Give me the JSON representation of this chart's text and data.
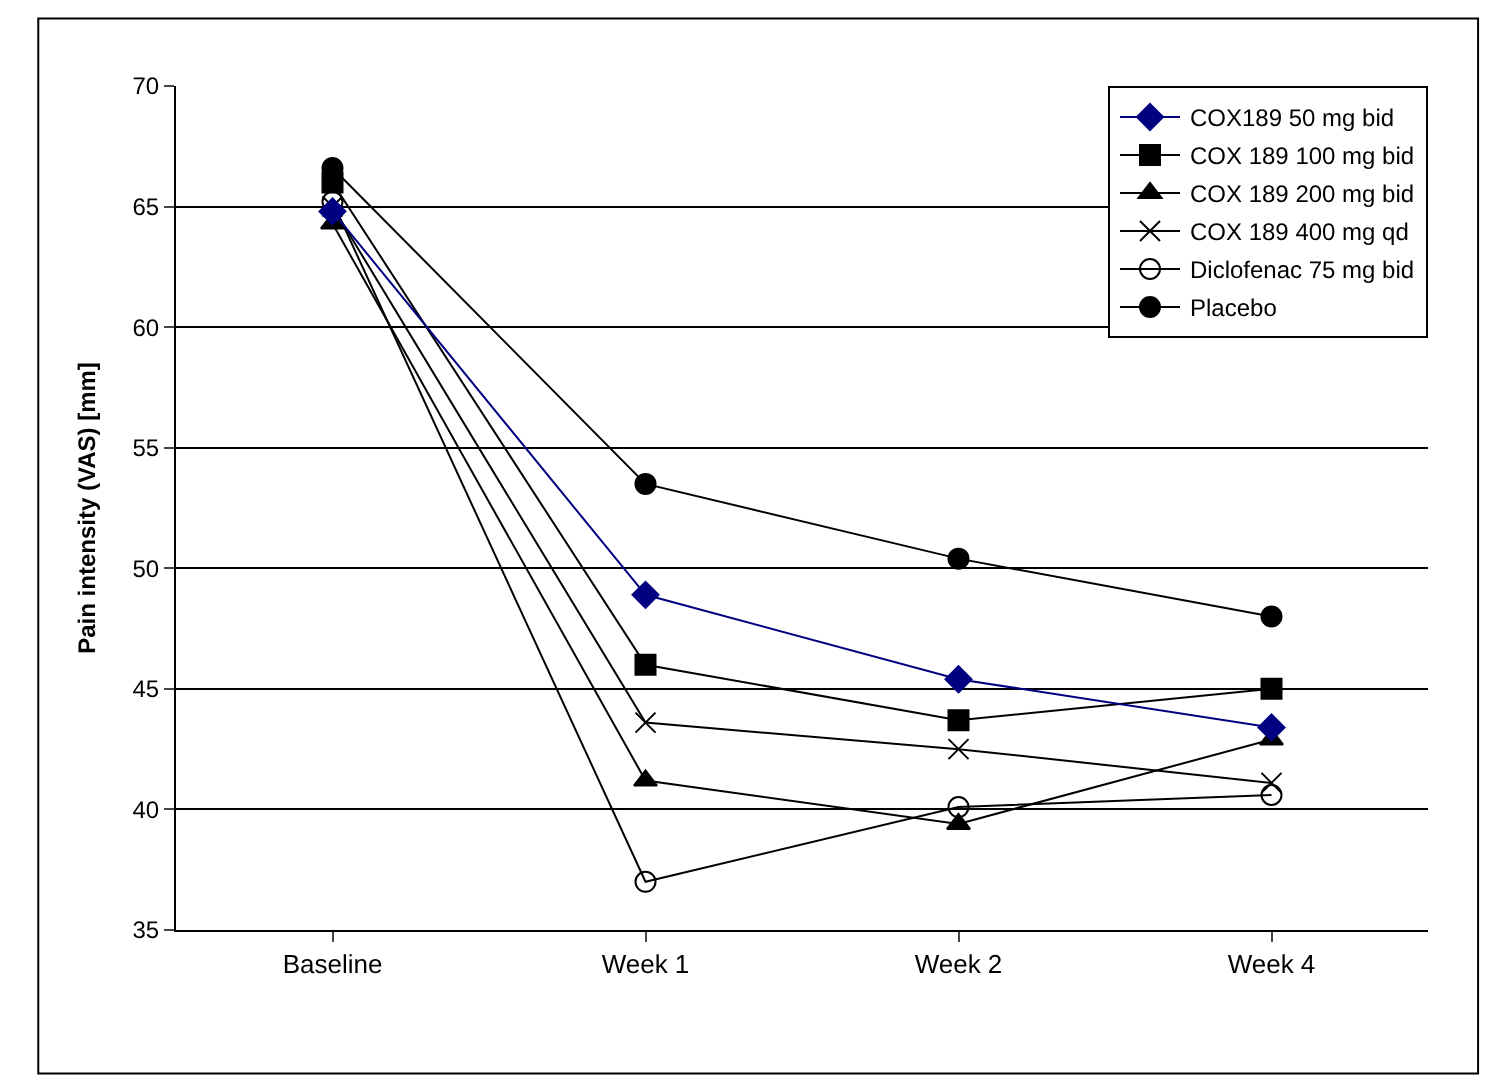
{
  "chart_data": {
    "type": "line",
    "ylabel": "Pain intensity (VAS) [mm]",
    "categories": [
      "Baseline",
      "Week 1",
      "Week 2",
      "Week 4"
    ],
    "series": [
      {
        "name": "COX189 50 mg bid",
        "color": "#000080",
        "marker": "diamond",
        "values": [
          64.8,
          48.9,
          45.4,
          43.4
        ]
      },
      {
        "name": "COX 189 100 mg bid",
        "color": "#000000",
        "marker": "square",
        "values": [
          66.0,
          46.0,
          43.7,
          45.0
        ]
      },
      {
        "name": "COX 189 200 mg bid",
        "color": "#000000",
        "marker": "triangle",
        "values": [
          64.3,
          41.2,
          39.4,
          42.9
        ]
      },
      {
        "name": "COX 189 400 mg qd",
        "color": "#000000",
        "marker": "cross",
        "values": [
          65.0,
          43.6,
          42.5,
          41.1
        ]
      },
      {
        "name": "Diclofenac 75 mg bid",
        "color": "#000000",
        "marker": "circle-open",
        "values": [
          65.2,
          37.0,
          40.1,
          40.6
        ]
      },
      {
        "name": "Placebo",
        "color": "#000000",
        "marker": "circle",
        "values": [
          66.6,
          53.5,
          50.4,
          48.0
        ]
      }
    ],
    "ylim": [
      35,
      70
    ],
    "yticks": [
      35,
      40,
      45,
      50,
      55,
      60,
      65,
      70
    ],
    "grid": "y",
    "legend": "top right"
  }
}
